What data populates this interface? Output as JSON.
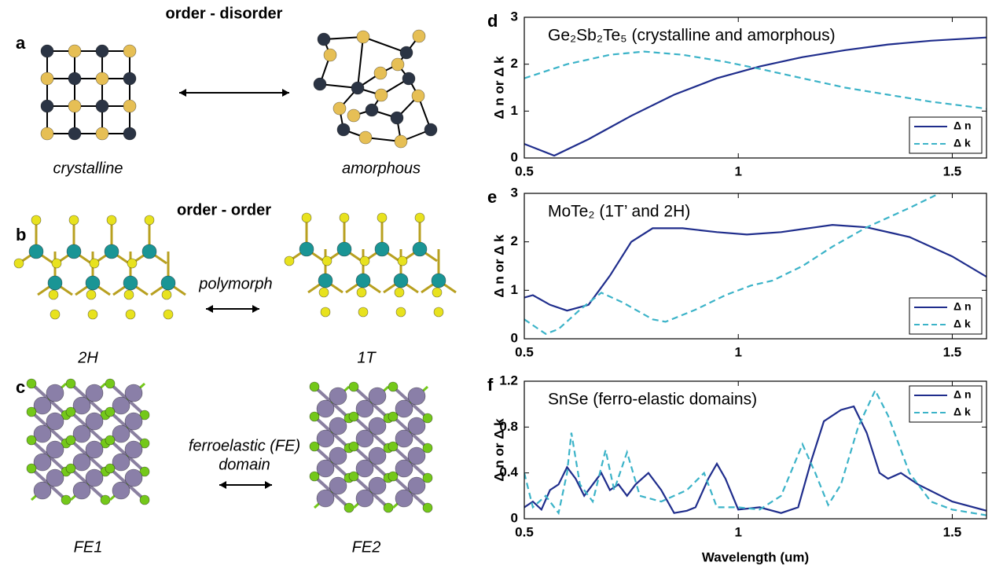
{
  "left": {
    "a": {
      "label": "a",
      "heading": "order - disorder",
      "left": "crystalline",
      "right": "amorphous"
    },
    "b": {
      "label": "b",
      "heading": "order - order",
      "middle": "polymorph",
      "left": "2H",
      "right": "1T"
    },
    "c": {
      "label": "c",
      "middle_1": "ferroelastic (FE)",
      "middle_2": "domain",
      "left": "FE1",
      "right": "FE2"
    }
  },
  "chart_data": [
    {
      "type": "line",
      "panel_label": "d",
      "title": "Ge₂Sb₂Te₅ (crystalline and amorphous)",
      "ylabel": "Δ n or Δ k",
      "xlim": [
        0.5,
        1.58
      ],
      "xticks": [
        0.5,
        1,
        1.5
      ],
      "ylim": [
        0,
        3
      ],
      "yticks": [
        0,
        1,
        2,
        3
      ],
      "legend": "lower right",
      "series": [
        {
          "name": "Δ n",
          "color": "#1f2d8c",
          "style": "solid",
          "x": [
            0.5,
            0.57,
            0.65,
            0.75,
            0.85,
            0.95,
            1.05,
            1.15,
            1.25,
            1.35,
            1.45,
            1.58
          ],
          "values": [
            0.3,
            0.05,
            0.4,
            0.9,
            1.35,
            1.7,
            1.95,
            2.15,
            2.3,
            2.42,
            2.5,
            2.57
          ]
        },
        {
          "name": "Δ k",
          "color": "#3bb3c8",
          "style": "dashed",
          "x": [
            0.5,
            0.6,
            0.7,
            0.78,
            0.87,
            0.97,
            1.05,
            1.15,
            1.25,
            1.35,
            1.45,
            1.58
          ],
          "values": [
            1.7,
            2.0,
            2.2,
            2.27,
            2.2,
            2.05,
            1.9,
            1.7,
            1.5,
            1.35,
            1.2,
            1.05
          ]
        }
      ]
    },
    {
      "type": "line",
      "panel_label": "e",
      "title": "MoTe₂ (1T’ and 2H)",
      "ylabel": "Δ n or Δ k",
      "xlim": [
        0.5,
        1.58
      ],
      "xticks": [
        0.5,
        1,
        1.5
      ],
      "ylim": [
        0,
        3
      ],
      "yticks": [
        0,
        1,
        2,
        3
      ],
      "legend": "lower right",
      "series": [
        {
          "name": "Δ n",
          "color": "#1f2d8c",
          "style": "solid",
          "x": [
            0.5,
            0.52,
            0.56,
            0.6,
            0.65,
            0.7,
            0.75,
            0.8,
            0.87,
            0.95,
            1.02,
            1.1,
            1.18,
            1.22,
            1.3,
            1.4,
            1.5,
            1.58
          ],
          "values": [
            0.85,
            0.9,
            0.7,
            0.58,
            0.7,
            1.3,
            2.0,
            2.28,
            2.28,
            2.2,
            2.15,
            2.2,
            2.3,
            2.35,
            2.3,
            2.1,
            1.7,
            1.28
          ]
        },
        {
          "name": "Δ k",
          "color": "#3bb3c8",
          "style": "dashed",
          "x": [
            0.5,
            0.55,
            0.58,
            0.63,
            0.68,
            0.73,
            0.8,
            0.83,
            0.9,
            0.97,
            1.03,
            1.08,
            1.15,
            1.22,
            1.3,
            1.4,
            1.47
          ],
          "values": [
            0.4,
            0.1,
            0.2,
            0.6,
            0.95,
            0.75,
            0.4,
            0.35,
            0.6,
            0.9,
            1.1,
            1.2,
            1.5,
            1.9,
            2.3,
            2.7,
            3.0
          ]
        }
      ]
    },
    {
      "type": "line",
      "panel_label": "f",
      "title": "SnSe (ferro-elastic domains)",
      "ylabel": "Δ n or Δ k",
      "xlabel": "Wavelength (um)",
      "xlim": [
        0.5,
        1.58
      ],
      "xticks": [
        0.5,
        1,
        1.5
      ],
      "ylim": [
        0,
        1.2
      ],
      "yticks": [
        0,
        0.4,
        0.8,
        1.2
      ],
      "legend": "upper right",
      "series": [
        {
          "name": "Δ n",
          "color": "#1f2d8c",
          "style": "solid",
          "x": [
            0.5,
            0.52,
            0.54,
            0.56,
            0.58,
            0.6,
            0.62,
            0.64,
            0.66,
            0.68,
            0.7,
            0.72,
            0.74,
            0.76,
            0.79,
            0.82,
            0.85,
            0.88,
            0.9,
            0.93,
            0.95,
            0.97,
            1.0,
            1.05,
            1.1,
            1.14,
            1.17,
            1.2,
            1.24,
            1.27,
            1.3,
            1.33,
            1.35,
            1.38,
            1.42,
            1.5,
            1.58
          ],
          "values": [
            0.1,
            0.15,
            0.08,
            0.25,
            0.3,
            0.45,
            0.35,
            0.2,
            0.3,
            0.4,
            0.25,
            0.3,
            0.2,
            0.3,
            0.4,
            0.25,
            0.05,
            0.07,
            0.1,
            0.35,
            0.48,
            0.35,
            0.08,
            0.1,
            0.05,
            0.1,
            0.5,
            0.85,
            0.95,
            0.98,
            0.75,
            0.4,
            0.35,
            0.4,
            0.3,
            0.15,
            0.07
          ]
        },
        {
          "name": "Δ k",
          "color": "#3bb3c8",
          "style": "dashed",
          "x": [
            0.5,
            0.52,
            0.55,
            0.58,
            0.6,
            0.61,
            0.63,
            0.66,
            0.69,
            0.71,
            0.74,
            0.77,
            0.82,
            0.88,
            0.92,
            0.95,
            1.0,
            1.05,
            1.1,
            1.15,
            1.18,
            1.21,
            1.24,
            1.28,
            1.32,
            1.35,
            1.4,
            1.45,
            1.5,
            1.58
          ],
          "values": [
            0.4,
            0.1,
            0.2,
            0.05,
            0.4,
            0.75,
            0.3,
            0.15,
            0.6,
            0.25,
            0.58,
            0.2,
            0.15,
            0.25,
            0.4,
            0.1,
            0.1,
            0.08,
            0.2,
            0.65,
            0.4,
            0.12,
            0.3,
            0.8,
            1.12,
            0.9,
            0.4,
            0.15,
            0.08,
            0.03
          ]
        }
      ]
    }
  ]
}
